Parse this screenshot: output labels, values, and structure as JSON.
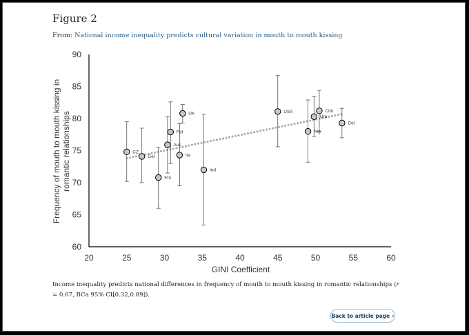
{
  "figure": {
    "title": "Figure 2",
    "from_label": "From:",
    "from_link": "National income inequality predicts cultural variation in mouth to mouth kissing",
    "caption_pre": "Income inequality predicts national differences in frequency of mouth to mouth kissing in romantic relationships (",
    "caption_r": "r",
    "caption_post": " = 0.67, BCa 95% CI[0.32,0.89]).",
    "back_button": "Back to article page",
    "back_chevron": "›"
  },
  "chart_data": {
    "type": "scatter",
    "xlabel": "GINI Coefficient",
    "ylabel_lines": [
      "Frequency of mouth to mouth kissing in",
      "romantic relationships"
    ],
    "xlim": [
      20,
      60
    ],
    "ylim": [
      60,
      90
    ],
    "xticks": [
      20,
      25,
      30,
      35,
      40,
      45,
      50,
      55,
      60
    ],
    "yticks": [
      60,
      65,
      70,
      75,
      80,
      85,
      90
    ],
    "grid": false,
    "trendline": {
      "style": "dotted",
      "x": [
        25,
        53.5
      ],
      "y": [
        73.8,
        80.7
      ],
      "color": "#a9a9a9"
    },
    "marker_color": "#c8c8c8",
    "points": [
      {
        "label": "CZ",
        "x": 25.0,
        "y": 74.8,
        "lo": 70.2,
        "hi": 79.5
      },
      {
        "label": "Ger",
        "x": 27.0,
        "y": 74.1,
        "lo": 70.0,
        "hi": 78.5
      },
      {
        "label": "Fra",
        "x": 29.2,
        "y": 70.8,
        "lo": 66.0,
        "hi": 75.5
      },
      {
        "label": "Aus",
        "x": 30.4,
        "y": 75.9,
        "lo": 71.5,
        "hi": 80.3
      },
      {
        "label": "Pol",
        "x": 30.8,
        "y": 77.9,
        "lo": 73.0,
        "hi": 82.6
      },
      {
        "label": "Ita",
        "x": 32.0,
        "y": 74.3,
        "lo": 69.5,
        "hi": 79.2
      },
      {
        "label": "UK",
        "x": 32.4,
        "y": 80.8,
        "lo": 79.3,
        "hi": 82.2
      },
      {
        "label": "Ind",
        "x": 35.2,
        "y": 72.0,
        "lo": 63.4,
        "hi": 80.7
      },
      {
        "label": "USA",
        "x": 45.0,
        "y": 81.1,
        "lo": 75.6,
        "hi": 86.7
      },
      {
        "label": "Nig",
        "x": 49.0,
        "y": 78.0,
        "lo": 73.2,
        "hi": 82.9
      },
      {
        "label": "Ura",
        "x": 49.8,
        "y": 80.3,
        "lo": 77.2,
        "hi": 83.5
      },
      {
        "label": "Chil",
        "x": 50.5,
        "y": 81.2,
        "lo": 78.0,
        "hi": 84.4
      },
      {
        "label": "Col",
        "x": 53.5,
        "y": 79.3,
        "lo": 77.0,
        "hi": 81.6
      }
    ]
  }
}
